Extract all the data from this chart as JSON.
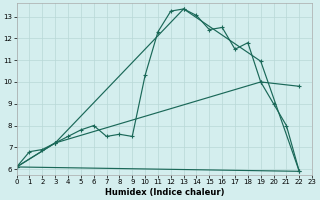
{
  "bg_color": "#d4eeee",
  "grid_color": "#b8d8d6",
  "line_color": "#1a6858",
  "xlabel": "Humidex (Indice chaleur)",
  "xlim": [
    0,
    23
  ],
  "ylim": [
    5.75,
    13.6
  ],
  "xtick_vals": [
    0,
    1,
    2,
    3,
    4,
    5,
    6,
    7,
    8,
    9,
    10,
    11,
    12,
    13,
    14,
    15,
    16,
    17,
    18,
    19,
    20,
    21,
    22,
    23
  ],
  "ytick_vals": [
    6,
    7,
    8,
    9,
    10,
    11,
    12,
    13
  ],
  "curve_x": [
    0,
    1,
    2,
    3,
    4,
    5,
    6,
    7,
    8,
    9,
    10,
    11,
    12,
    13,
    14,
    15,
    16,
    17,
    18,
    19,
    20,
    21,
    22
  ],
  "curve_y": [
    6.1,
    6.8,
    6.9,
    7.2,
    7.5,
    7.8,
    8.0,
    7.5,
    7.6,
    7.5,
    10.3,
    12.3,
    13.25,
    13.35,
    13.05,
    12.4,
    12.5,
    11.5,
    11.8,
    10.0,
    9.0,
    8.0,
    5.9
  ],
  "line2_x": [
    0,
    3,
    13,
    19,
    22
  ],
  "line2_y": [
    6.1,
    7.2,
    13.35,
    10.95,
    5.9
  ],
  "line3_x": [
    0,
    3,
    19,
    22
  ],
  "line3_y": [
    6.1,
    7.2,
    10.0,
    9.8
  ],
  "line4_x": [
    0,
    22
  ],
  "line4_y": [
    6.1,
    5.9
  ]
}
